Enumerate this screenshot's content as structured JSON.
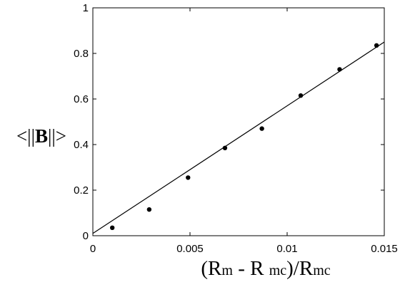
{
  "chart_data": {
    "type": "scatter",
    "xlabel": "(R_m - R_mc)/R_mc",
    "ylabel": "<||B||>",
    "xlim": [
      0,
      0.015
    ],
    "ylim": [
      0,
      1
    ],
    "x_ticks": [
      0,
      0.005,
      0.01,
      0.015
    ],
    "x_tick_labels": [
      "0",
      "0.005",
      "0.01",
      "0.015"
    ],
    "y_ticks": [
      0,
      0.2,
      0.4,
      0.6,
      0.8,
      1
    ],
    "y_tick_labels": [
      "0",
      "0.2",
      "0.4",
      "0.6",
      "0.8",
      "1"
    ],
    "grid": false,
    "series": [
      {
        "type": "scatter",
        "x": [
          0.001,
          0.0029,
          0.0049,
          0.0068,
          0.0087,
          0.0107,
          0.0127,
          0.0146
        ],
        "y": [
          0.035,
          0.115,
          0.255,
          0.385,
          0.47,
          0.615,
          0.73,
          0.835
        ],
        "color": "#000000"
      },
      {
        "type": "line",
        "x": [
          0,
          0.015
        ],
        "y": [
          0.01,
          0.85
        ],
        "color": "#000000"
      }
    ]
  }
}
